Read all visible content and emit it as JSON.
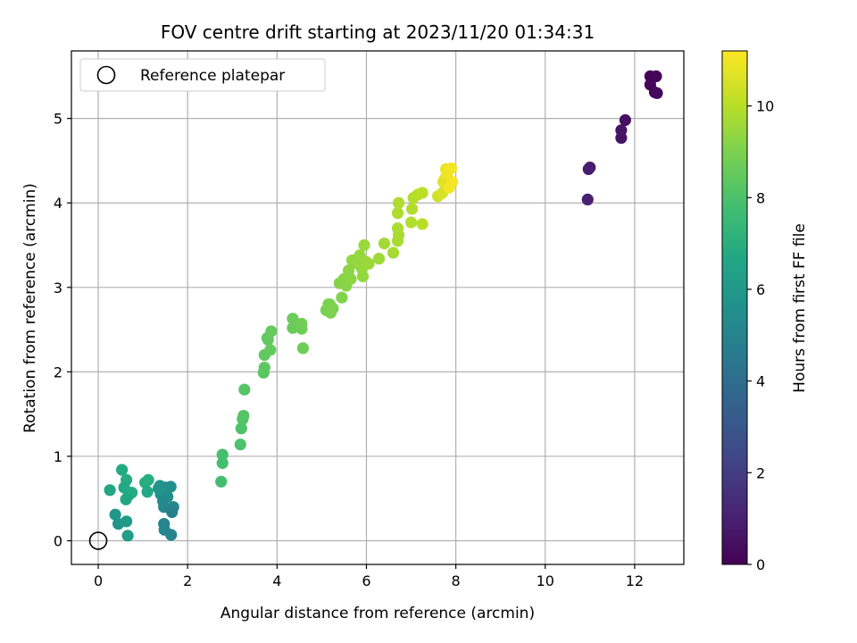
{
  "chart_data": {
    "type": "scatter",
    "title": "FOV centre drift starting at 2023/11/20 01:34:31",
    "xlabel": "Angular distance from reference (arcmin)",
    "ylabel": "Rotation from reference (arcmin)",
    "xlim": [
      -0.6,
      13.1
    ],
    "ylim": [
      -0.28,
      5.8
    ],
    "xticks": [
      0,
      2,
      4,
      6,
      8,
      10,
      12
    ],
    "yticks": [
      0,
      1,
      2,
      3,
      4,
      5
    ],
    "grid": true,
    "legend": {
      "position": "upper-left",
      "entries": [
        "Reference platepar"
      ]
    },
    "reference_point": {
      "x": 0,
      "y": 0,
      "label": "Reference platepar"
    },
    "colorbar": {
      "label": "Hours from first FF file",
      "range": [
        0,
        11.2
      ],
      "ticks": [
        0,
        2,
        4,
        6,
        8,
        10
      ],
      "colormap": "viridis"
    },
    "series": [
      {
        "points": [
          [
            12.35,
            5.5,
            0.05
          ],
          [
            12.48,
            5.5,
            0.1
          ],
          [
            12.35,
            5.4,
            0.15
          ],
          [
            12.45,
            5.31,
            0.2
          ],
          [
            12.5,
            5.3,
            0.25
          ],
          [
            11.79,
            4.98,
            0.45
          ],
          [
            11.7,
            4.86,
            0.55
          ],
          [
            11.7,
            4.77,
            0.6
          ],
          [
            11.0,
            4.42,
            0.85
          ],
          [
            10.97,
            4.4,
            0.9
          ],
          [
            10.95,
            4.04,
            1.0
          ],
          [
            0.26,
            0.6,
            6.6
          ],
          [
            0.53,
            0.84,
            6.8
          ],
          [
            0.63,
            0.72,
            6.9
          ],
          [
            0.58,
            0.63,
            6.7
          ],
          [
            0.75,
            0.57,
            6.85
          ],
          [
            0.68,
            0.54,
            6.75
          ],
          [
            0.62,
            0.49,
            6.65
          ],
          [
            1.05,
            0.69,
            6.9
          ],
          [
            1.12,
            0.72,
            6.95
          ],
          [
            1.1,
            0.58,
            6.7
          ],
          [
            0.38,
            0.31,
            5.9
          ],
          [
            0.45,
            0.2,
            5.8
          ],
          [
            0.63,
            0.23,
            6.1
          ],
          [
            0.66,
            0.06,
            6.2
          ],
          [
            1.38,
            0.65,
            5.7
          ],
          [
            1.5,
            0.63,
            5.6
          ],
          [
            1.62,
            0.64,
            5.5
          ],
          [
            1.4,
            0.55,
            5.6
          ],
          [
            1.55,
            0.52,
            5.4
          ],
          [
            1.45,
            0.47,
            5.3
          ],
          [
            1.47,
            0.4,
            5.2
          ],
          [
            1.68,
            0.4,
            5.0
          ],
          [
            1.65,
            0.34,
            4.9
          ],
          [
            1.47,
            0.2,
            5.0
          ],
          [
            1.48,
            0.13,
            5.1
          ],
          [
            1.63,
            0.07,
            5.0
          ],
          [
            1.35,
            0.62,
            5.8
          ],
          [
            2.75,
            0.7,
            7.8
          ],
          [
            2.78,
            1.02,
            7.9
          ],
          [
            2.78,
            0.92,
            7.85
          ],
          [
            3.18,
            1.14,
            8.0
          ],
          [
            3.2,
            1.33,
            8.05
          ],
          [
            3.23,
            1.44,
            8.1
          ],
          [
            3.25,
            1.48,
            8.15
          ],
          [
            3.27,
            1.79,
            8.2
          ],
          [
            3.7,
            1.99,
            8.3
          ],
          [
            3.72,
            2.05,
            8.35
          ],
          [
            3.72,
            2.2,
            8.4
          ],
          [
            3.78,
            2.4,
            8.45
          ],
          [
            3.8,
            2.38,
            8.45
          ],
          [
            3.85,
            2.26,
            8.5
          ],
          [
            3.87,
            2.48,
            8.55
          ],
          [
            4.35,
            2.52,
            8.6
          ],
          [
            4.35,
            2.63,
            8.65
          ],
          [
            4.55,
            2.51,
            8.7
          ],
          [
            4.55,
            2.57,
            8.75
          ],
          [
            4.58,
            2.28,
            8.7
          ],
          [
            5.1,
            2.73,
            8.9
          ],
          [
            5.15,
            2.8,
            8.95
          ],
          [
            5.2,
            2.7,
            9.0
          ],
          [
            5.25,
            2.75,
            9.05
          ],
          [
            5.18,
            2.8,
            9.0
          ],
          [
            5.45,
            2.88,
            9.1
          ],
          [
            5.4,
            3.05,
            9.15
          ],
          [
            5.5,
            3.1,
            9.2
          ],
          [
            5.55,
            3.02,
            9.2
          ],
          [
            5.6,
            3.2,
            9.25
          ],
          [
            5.65,
            3.1,
            9.3
          ],
          [
            5.68,
            3.32,
            9.35
          ],
          [
            5.8,
            3.28,
            9.4
          ],
          [
            5.85,
            3.38,
            9.45
          ],
          [
            5.9,
            3.22,
            9.4
          ],
          [
            5.92,
            3.13,
            9.4
          ],
          [
            5.95,
            3.5,
            9.5
          ],
          [
            6.0,
            3.3,
            9.5
          ],
          [
            6.05,
            3.28,
            9.55
          ],
          [
            6.28,
            3.34,
            9.6
          ],
          [
            6.4,
            3.52,
            9.65
          ],
          [
            6.6,
            3.41,
            9.7
          ],
          [
            6.7,
            3.55,
            9.75
          ],
          [
            6.72,
            3.62,
            9.75
          ],
          [
            6.7,
            3.7,
            9.8
          ],
          [
            6.7,
            3.88,
            9.85
          ],
          [
            6.72,
            4.0,
            9.85
          ],
          [
            7.0,
            3.77,
            9.9
          ],
          [
            7.02,
            3.93,
            9.9
          ],
          [
            7.05,
            4.06,
            9.95
          ],
          [
            7.15,
            4.1,
            10.0
          ],
          [
            7.25,
            4.12,
            10.05
          ],
          [
            7.25,
            3.75,
            10.0
          ],
          [
            7.6,
            4.08,
            10.4
          ],
          [
            7.7,
            4.12,
            10.5
          ],
          [
            7.75,
            4.28,
            10.6
          ],
          [
            7.72,
            4.25,
            10.7
          ],
          [
            7.78,
            4.4,
            10.8
          ],
          [
            7.82,
            4.38,
            10.9
          ],
          [
            7.9,
            4.41,
            11.0
          ],
          [
            7.92,
            4.25,
            11.1
          ],
          [
            7.85,
            4.18,
            11.0
          ],
          [
            7.8,
            4.34,
            10.95
          ]
        ]
      }
    ]
  }
}
